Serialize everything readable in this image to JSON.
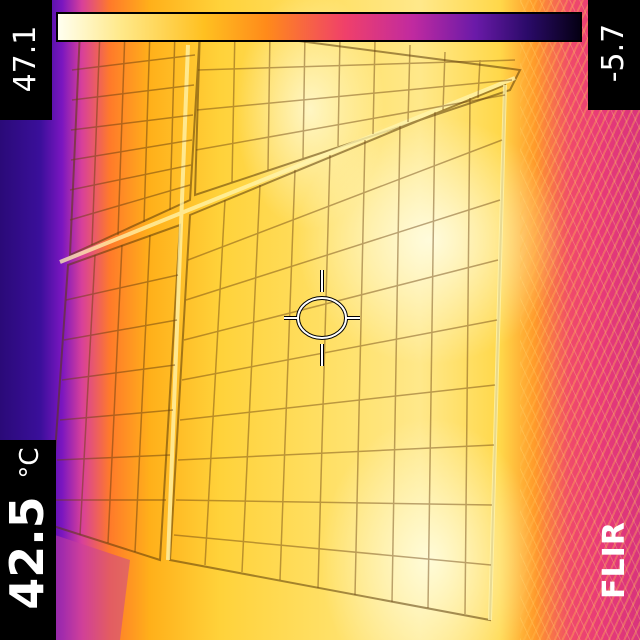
{
  "scale": {
    "max_label": "47.1",
    "min_label": "-5.7"
  },
  "spot_meter": {
    "value": "42.5",
    "unit": "°C"
  },
  "brand": {
    "name": "FLIR"
  },
  "palette": {
    "name": "iron",
    "colors": [
      "#fffff0",
      "#ffe98a",
      "#ffc020",
      "#ff8a1a",
      "#f0406a",
      "#c02aa0",
      "#6a1aa8",
      "#2a0a68",
      "#050014"
    ]
  }
}
